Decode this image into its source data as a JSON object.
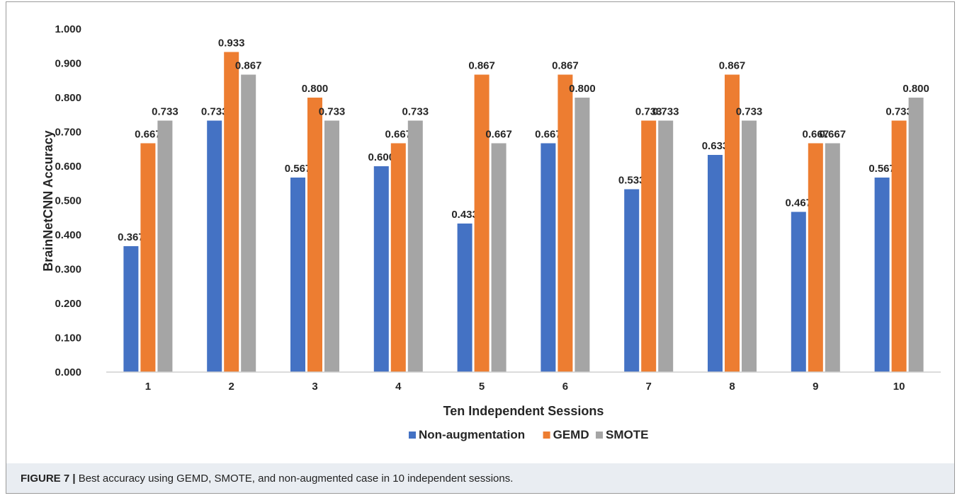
{
  "chart_data": {
    "type": "bar",
    "categories": [
      "1",
      "2",
      "3",
      "4",
      "5",
      "6",
      "7",
      "8",
      "9",
      "10"
    ],
    "series": [
      {
        "name": "Non-augmentation",
        "color": "#4472c4",
        "values": [
          0.367,
          0.733,
          0.567,
          0.6,
          0.433,
          0.667,
          0.533,
          0.633,
          0.467,
          0.567
        ],
        "labels": [
          "0.367",
          "0.733",
          "0.567",
          "0.600",
          "0.433",
          "0.667",
          "0.533",
          "0.633",
          "0.467",
          "0.567"
        ]
      },
      {
        "name": "GEMD",
        "color": "#ed7d31",
        "values": [
          0.667,
          0.933,
          0.8,
          0.667,
          0.867,
          0.867,
          0.733,
          0.867,
          0.667,
          0.733
        ],
        "labels": [
          "0.667",
          "0.933",
          "0.800",
          "0.667",
          "0.867",
          "0.867",
          "0.733",
          "0.867",
          "0.667",
          "0.733"
        ]
      },
      {
        "name": "SMOTE",
        "color": "#a5a5a5",
        "values": [
          0.733,
          0.867,
          0.733,
          0.733,
          0.667,
          0.8,
          0.733,
          0.733,
          0.667,
          0.8
        ],
        "labels": [
          "0.733",
          "0.867",
          "0.733",
          "0.733",
          "0.667",
          "0.800",
          "0.733",
          "0.733",
          "0.667",
          "0.800"
        ]
      }
    ],
    "xlabel": "Ten Independent Sessions",
    "ylabel": "BrainNetCNN Accuracy",
    "ylim": [
      0,
      1
    ],
    "yticks": [
      "0.000",
      "0.100",
      "0.200",
      "0.300",
      "0.400",
      "0.500",
      "0.600",
      "0.700",
      "0.800",
      "0.900",
      "1.000"
    ],
    "grid": false,
    "legend_position": "bottom"
  },
  "caption": {
    "lead": "FIGURE 7 |",
    "text": " Best accuracy using GEMD, SMOTE, and non-augmented case in 10 independent sessions."
  }
}
